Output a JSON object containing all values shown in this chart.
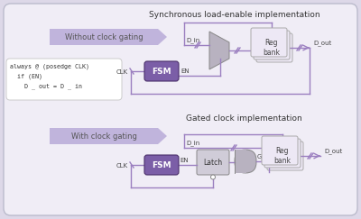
{
  "bg_color": "#ddd8e8",
  "panel_bg": "#f0edf6",
  "title1": "Synchronous load-enable implementation",
  "title2": "Gated clock implementation",
  "fsm_color": "#7b5ea7",
  "wire_color": "#9b7fc0",
  "mux_color": "#b8b2c0",
  "reg_color": "#ede8f5",
  "latch_color": "#c8c4d0",
  "and_color": "#b8b2c0",
  "tag1_text": "Without clock gating",
  "tag2_text": "With clock gating",
  "tag_color": "#c0b4dc",
  "tag_text_color": "#555555",
  "code_bg": "#ffffff",
  "code_border": "#cccccc",
  "code_lines": [
    "always @ (posedge CLK)",
    "  if (EN)",
    "    D _ out = D _ in"
  ]
}
